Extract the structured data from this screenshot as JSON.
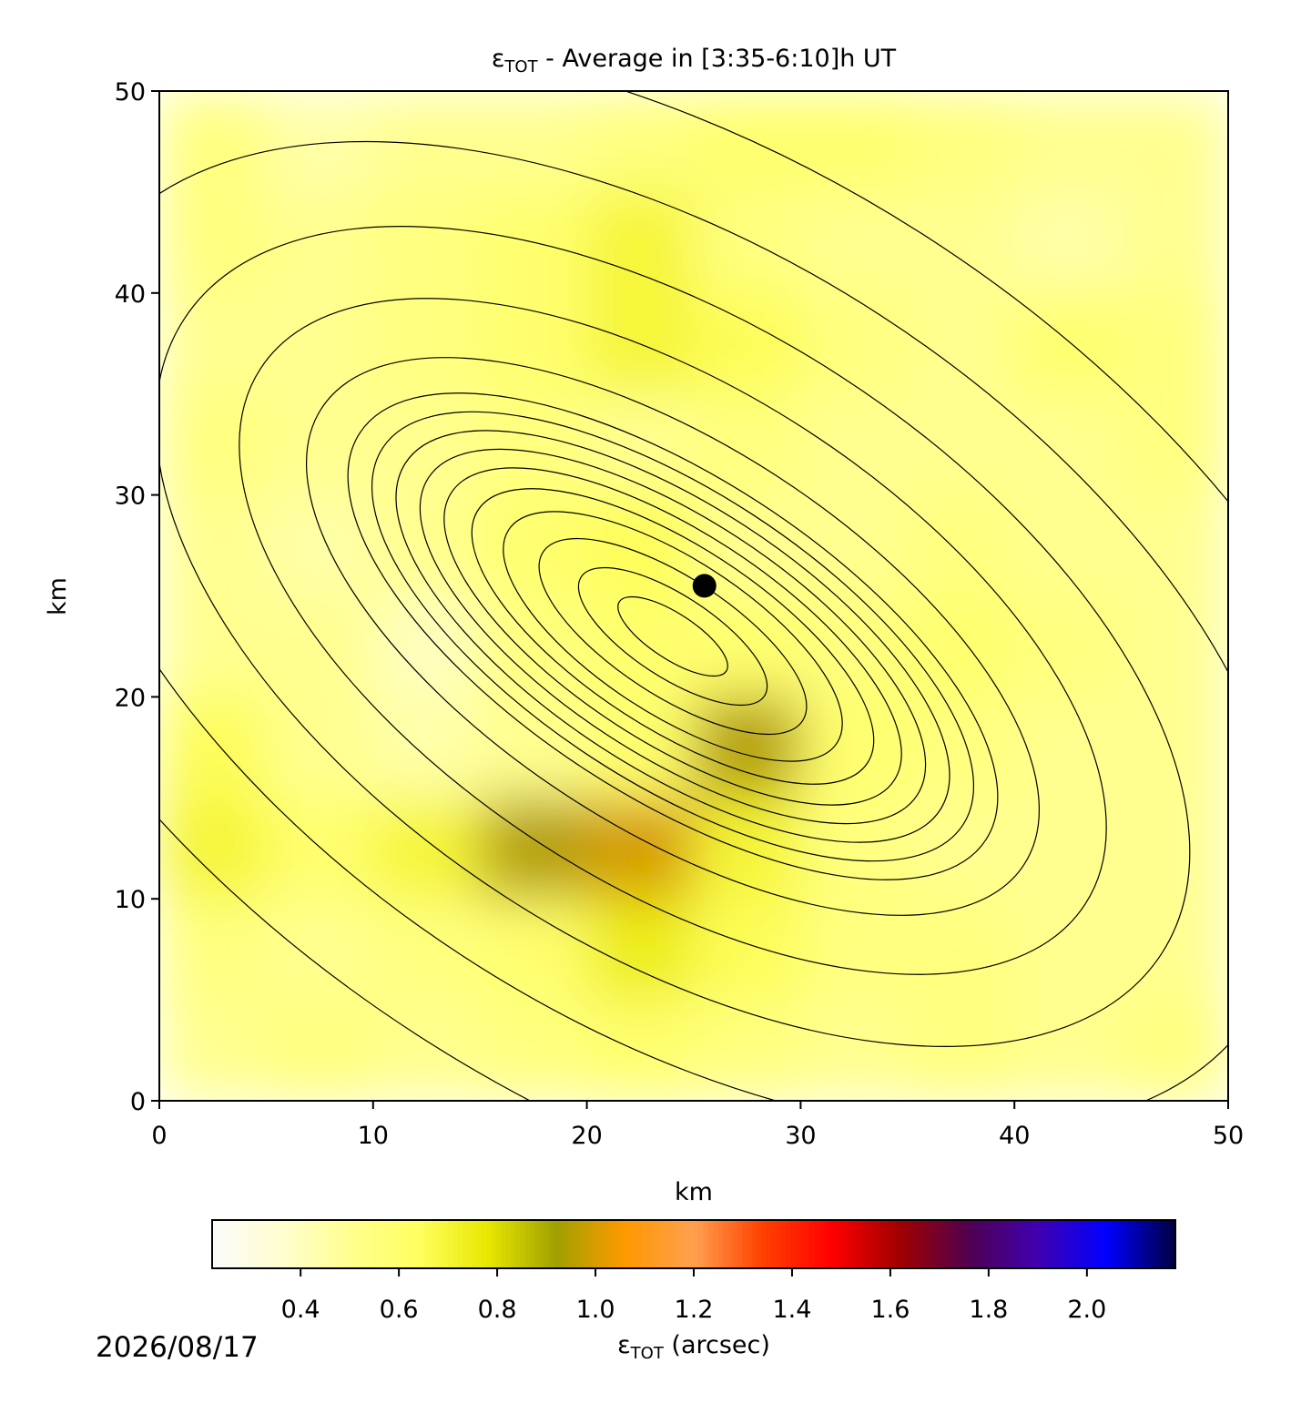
{
  "chart_data": {
    "type": "heatmap",
    "title": {
      "symbol": "ε",
      "subscript": "TOT",
      "text": " - Average in [3:35-6:10]h UT"
    },
    "xlabel": "km",
    "ylabel": "km",
    "xlim": [
      0,
      50
    ],
    "ylim": [
      0,
      50
    ],
    "xticks": [
      0,
      10,
      20,
      30,
      40,
      50
    ],
    "yticks": [
      0,
      10,
      20,
      30,
      40,
      50
    ],
    "cell_size": 5,
    "grid_values": [
      [
        0.55,
        0.45,
        0.5,
        0.5,
        0.55,
        0.6,
        0.6,
        0.55,
        0.5,
        0.5
      ],
      [
        0.55,
        0.5,
        0.55,
        0.6,
        0.7,
        0.55,
        0.5,
        0.5,
        0.45,
        0.5
      ],
      [
        0.5,
        0.5,
        0.55,
        0.6,
        0.7,
        0.65,
        0.55,
        0.5,
        0.6,
        0.55
      ],
      [
        0.55,
        0.5,
        0.5,
        0.55,
        0.5,
        0.55,
        0.5,
        0.5,
        0.5,
        0.55
      ],
      [
        0.5,
        0.45,
        0.5,
        0.6,
        0.65,
        0.5,
        0.5,
        0.55,
        0.5,
        0.5
      ],
      [
        0.5,
        0.5,
        0.4,
        0.55,
        0.6,
        0.6,
        0.55,
        0.6,
        0.55,
        0.5
      ],
      [
        0.65,
        0.5,
        0.45,
        0.5,
        0.6,
        0.95,
        0.6,
        0.55,
        0.5,
        0.5
      ],
      [
        0.7,
        0.6,
        0.7,
        0.95,
        1.0,
        0.7,
        0.55,
        0.5,
        0.5,
        0.5
      ],
      [
        0.55,
        0.5,
        0.55,
        0.6,
        0.75,
        0.65,
        0.55,
        0.55,
        0.5,
        0.5
      ],
      [
        0.5,
        0.55,
        0.5,
        0.55,
        0.6,
        0.55,
        0.5,
        0.55,
        0.5,
        0.55
      ]
    ],
    "marker": {
      "x": 25.5,
      "y": 25.5,
      "color": "#000000"
    },
    "colorbar": {
      "clim": [
        0.22,
        2.18
      ],
      "ticks": [
        0.4,
        0.6,
        0.8,
        {
          "value": 1,
          "label": "1.0"
        },
        1.2,
        1.4,
        1.6,
        1.8,
        {
          "value": 2,
          "label": "2.0"
        }
      ],
      "colors": [
        "#fafafa",
        "#fffed0",
        "#ffff90",
        "#ffff60",
        "#e8e800",
        "#a0a000",
        "#ff9900",
        "#ffa050",
        "#ff4000",
        "#ff0000",
        "#a00000",
        "#500050",
        "#4000b0",
        "#0000ff",
        "#000040"
      ],
      "label": {
        "symbol": "ε",
        "subscript": "TOT",
        "text": " (arcsec)"
      }
    },
    "date": "2026/08/17"
  }
}
